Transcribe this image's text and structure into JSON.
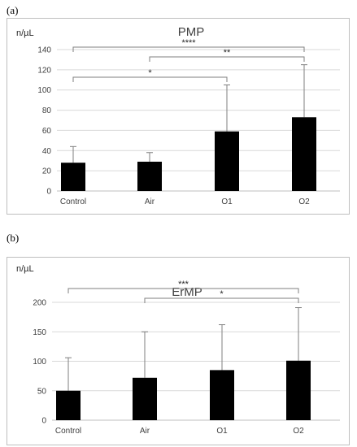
{
  "panels": {
    "a": "(a)",
    "b": "(b)"
  },
  "colors": {
    "bar": "#000000",
    "grid": "#d9d9d9",
    "bracket": "#7f7f7f",
    "errorbar": "#7f7f7f"
  },
  "chart_data": [
    {
      "type": "bar",
      "title": "PMP",
      "unit_label": "n/µL",
      "xlabel": "",
      "ylabel": "",
      "categories": [
        "Control",
        "Air",
        "O1",
        "O2"
      ],
      "values": [
        28,
        29,
        59,
        73
      ],
      "error_upper": [
        44,
        38,
        105,
        125
      ],
      "ylim": [
        0,
        140
      ],
      "yticks": [
        0,
        20,
        40,
        60,
        80,
        100,
        120,
        140
      ],
      "grid": true,
      "legend": "none",
      "significance": [
        {
          "from": "Control",
          "to": "O2",
          "label": "****"
        },
        {
          "from": "Air",
          "to": "O2",
          "label": "**"
        },
        {
          "from": "Control",
          "to": "O1",
          "label": "*"
        }
      ]
    },
    {
      "type": "bar",
      "title": "ErMP",
      "unit_label": "n/µL",
      "xlabel": "",
      "ylabel": "",
      "categories": [
        "Control",
        "Air",
        "O1",
        "O2"
      ],
      "values": [
        50,
        72,
        85,
        101
      ],
      "error_upper": [
        106,
        150,
        162,
        191
      ],
      "ylim": [
        0,
        200
      ],
      "yticks": [
        0,
        50,
        100,
        150,
        200
      ],
      "grid": true,
      "legend": "none",
      "significance": [
        {
          "from": "Control",
          "to": "O2",
          "label": "***"
        },
        {
          "from": "Air",
          "to": "O2",
          "label": "*"
        }
      ]
    }
  ]
}
